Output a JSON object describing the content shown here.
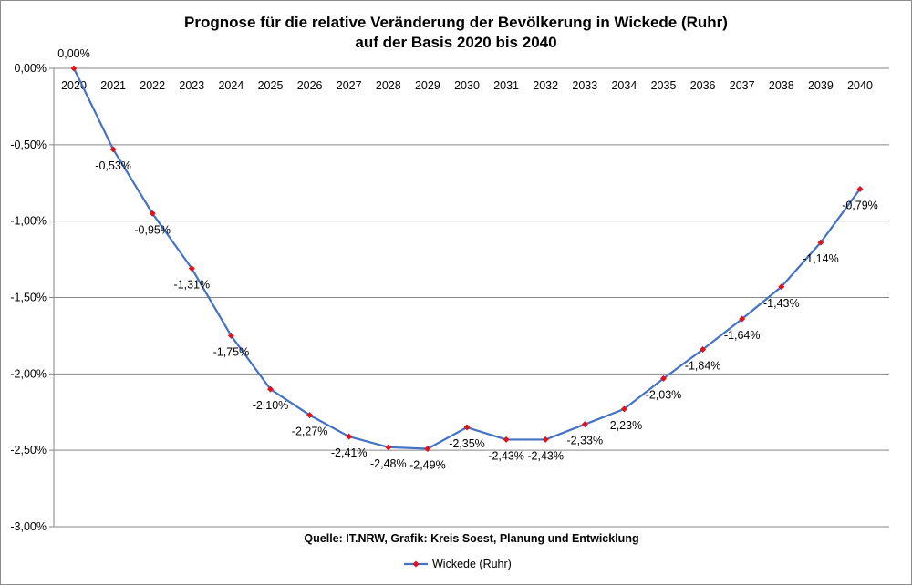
{
  "chart_data": {
    "type": "line",
    "title": [
      "Prognose für die relative Veränderung der Bevölkerung in Wickede (Ruhr)",
      "auf der Basis 2020 bis 2040"
    ],
    "categories": [
      "2020",
      "2021",
      "2022",
      "2023",
      "2024",
      "2025",
      "2026",
      "2027",
      "2028",
      "2029",
      "2030",
      "2031",
      "2032",
      "2033",
      "2034",
      "2035",
      "2036",
      "2037",
      "2038",
      "2039",
      "2040"
    ],
    "series": [
      {
        "name": "Wickede (Ruhr)",
        "values": [
          0.0,
          -0.53,
          -0.95,
          -1.31,
          -1.75,
          -2.1,
          -2.27,
          -2.41,
          -2.48,
          -2.49,
          -2.35,
          -2.43,
          -2.43,
          -2.33,
          -2.23,
          -2.03,
          -1.84,
          -1.64,
          -1.43,
          -1.14,
          -0.79
        ],
        "labels": [
          "0,00%",
          "-0,53%",
          "-0,95%",
          "-1,31%",
          "-1,75%",
          "-2,10%",
          "-2,27%",
          "-2,41%",
          "-2,48%",
          "-2,49%",
          "-2,35%",
          "-2,43%",
          "-2,43%",
          "-2,33%",
          "-2,23%",
          "-2,03%",
          "-1,84%",
          "-1,64%",
          "-1,43%",
          "-1,14%",
          "-0,79%"
        ],
        "line_color": "#4472c4",
        "marker_color": "#e0131d"
      }
    ],
    "ylim": [
      -3.0,
      0.0
    ],
    "yticks": [
      0.0,
      -0.5,
      -1.0,
      -1.5,
      -2.0,
      -2.5,
      -3.0
    ],
    "ytick_labels": [
      "0,00%",
      "-0,50%",
      "-1,00%",
      "-1,50%",
      "-2,00%",
      "-2,50%",
      "-3,00%"
    ],
    "xaxis_position": "top",
    "grid": "horizontal",
    "legend_position": "bottom",
    "source_note": "Quelle: IT.NRW, Grafik: Kreis Soest, Planung und Entwicklung"
  }
}
